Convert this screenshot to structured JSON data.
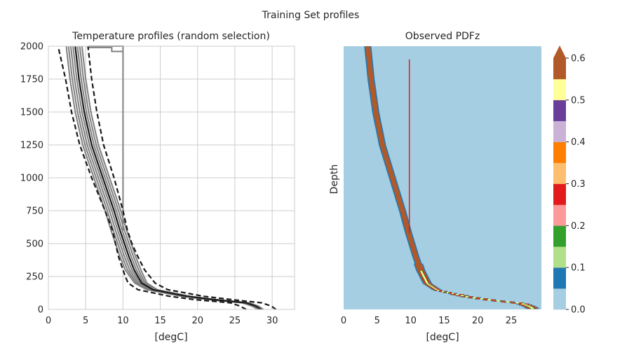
{
  "figure": {
    "suptitle": "Training Set profiles"
  },
  "chart_data": [
    {
      "type": "line",
      "title": "Temperature profiles (random selection)",
      "xlabel": "[degC]",
      "ylabel": "",
      "xlim": [
        0,
        33
      ],
      "ylim": [
        0,
        2000
      ],
      "xticks": [
        0,
        5,
        10,
        15,
        20,
        25,
        30
      ],
      "yticks": [
        0,
        250,
        500,
        750,
        1000,
        1250,
        1500,
        1750,
        2000
      ],
      "grid": true,
      "depth": [
        0,
        25,
        50,
        75,
        100,
        150,
        200,
        250,
        300,
        400,
        500,
        600,
        750,
        1000,
        1250,
        1500,
        1750,
        2000
      ],
      "sample_profile_offsets": [
        -1.2,
        -0.9,
        -0.6,
        -0.3,
        0.0,
        0.3,
        0.6,
        0.9
      ],
      "series": [
        {
          "role": "sample-profiles",
          "color": "#808080",
          "temperature": [
            28.5,
            27.8,
            26.5,
            22.0,
            18.5,
            14.0,
            12.5,
            12.0,
            11.5,
            10.8,
            10.2,
            9.6,
            8.8,
            7.3,
            5.8,
            4.8,
            4.1,
            3.6
          ]
        },
        {
          "role": "mean",
          "style": "solid",
          "color": "#1a1a1a",
          "temperature": [
            28.5,
            27.8,
            26.5,
            22.0,
            18.5,
            14.0,
            12.5,
            12.0,
            11.5,
            10.8,
            10.2,
            9.6,
            8.8,
            7.3,
            5.8,
            4.8,
            4.1,
            3.6
          ]
        },
        {
          "role": "mean-plus-std",
          "style": "dashed",
          "color": "#1a1a1a",
          "temperature": [
            30.5,
            29.9,
            28.6,
            24.5,
            20.8,
            16.0,
            14.3,
            13.6,
            12.9,
            12.0,
            11.2,
            10.6,
            10.0,
            8.8,
            7.4,
            6.5,
            5.8,
            5.3
          ]
        },
        {
          "role": "mean-minus-std",
          "style": "dashed",
          "color": "#1a1a1a",
          "temperature": [
            26.5,
            25.7,
            24.4,
            19.5,
            16.2,
            12.0,
            10.7,
            10.3,
            10.0,
            9.4,
            9.0,
            8.6,
            7.6,
            5.8,
            4.2,
            3.1,
            2.3,
            1.3
          ]
        },
        {
          "role": "outlier-box",
          "color": "#808080",
          "points": [
            [
              10,
              600
            ],
            [
              10,
              2000
            ],
            [
              5.5,
              2000
            ],
            [
              5.5,
              1990
            ],
            [
              8.5,
              1990
            ],
            [
              8.5,
              1960
            ],
            [
              10,
              1960
            ]
          ]
        }
      ]
    },
    {
      "type": "heatmap",
      "title": "Observed PDFz",
      "xlabel": "[degC]",
      "ylabel": "Depth",
      "xlim": [
        0,
        29.5
      ],
      "ylim": [
        0,
        2000
      ],
      "xticks": [
        0,
        5,
        10,
        15,
        20,
        25
      ],
      "background_color": "#a6cee3",
      "marker_line": {
        "color": "#e31a1c",
        "x": 9.8,
        "y_from": 1900,
        "y_to": 580
      },
      "colorbar": {
        "ticks": [
          "0.0",
          "0.1",
          "0.2",
          "0.3",
          "0.4",
          "0.5",
          "0.6"
        ],
        "levels": [
          0.0,
          0.05,
          0.1,
          0.15,
          0.2,
          0.25,
          0.3,
          0.35,
          0.4,
          0.45,
          0.5,
          0.55,
          0.6
        ],
        "colors": [
          "#a6cee3",
          "#1f78b4",
          "#b2df8a",
          "#33a02c",
          "#fb9a99",
          "#e31a1c",
          "#fdbf6f",
          "#ff7f00",
          "#cab2d6",
          "#6a3d9a",
          "#ffff99",
          "#b15928"
        ],
        "extend": "max"
      }
    }
  ]
}
